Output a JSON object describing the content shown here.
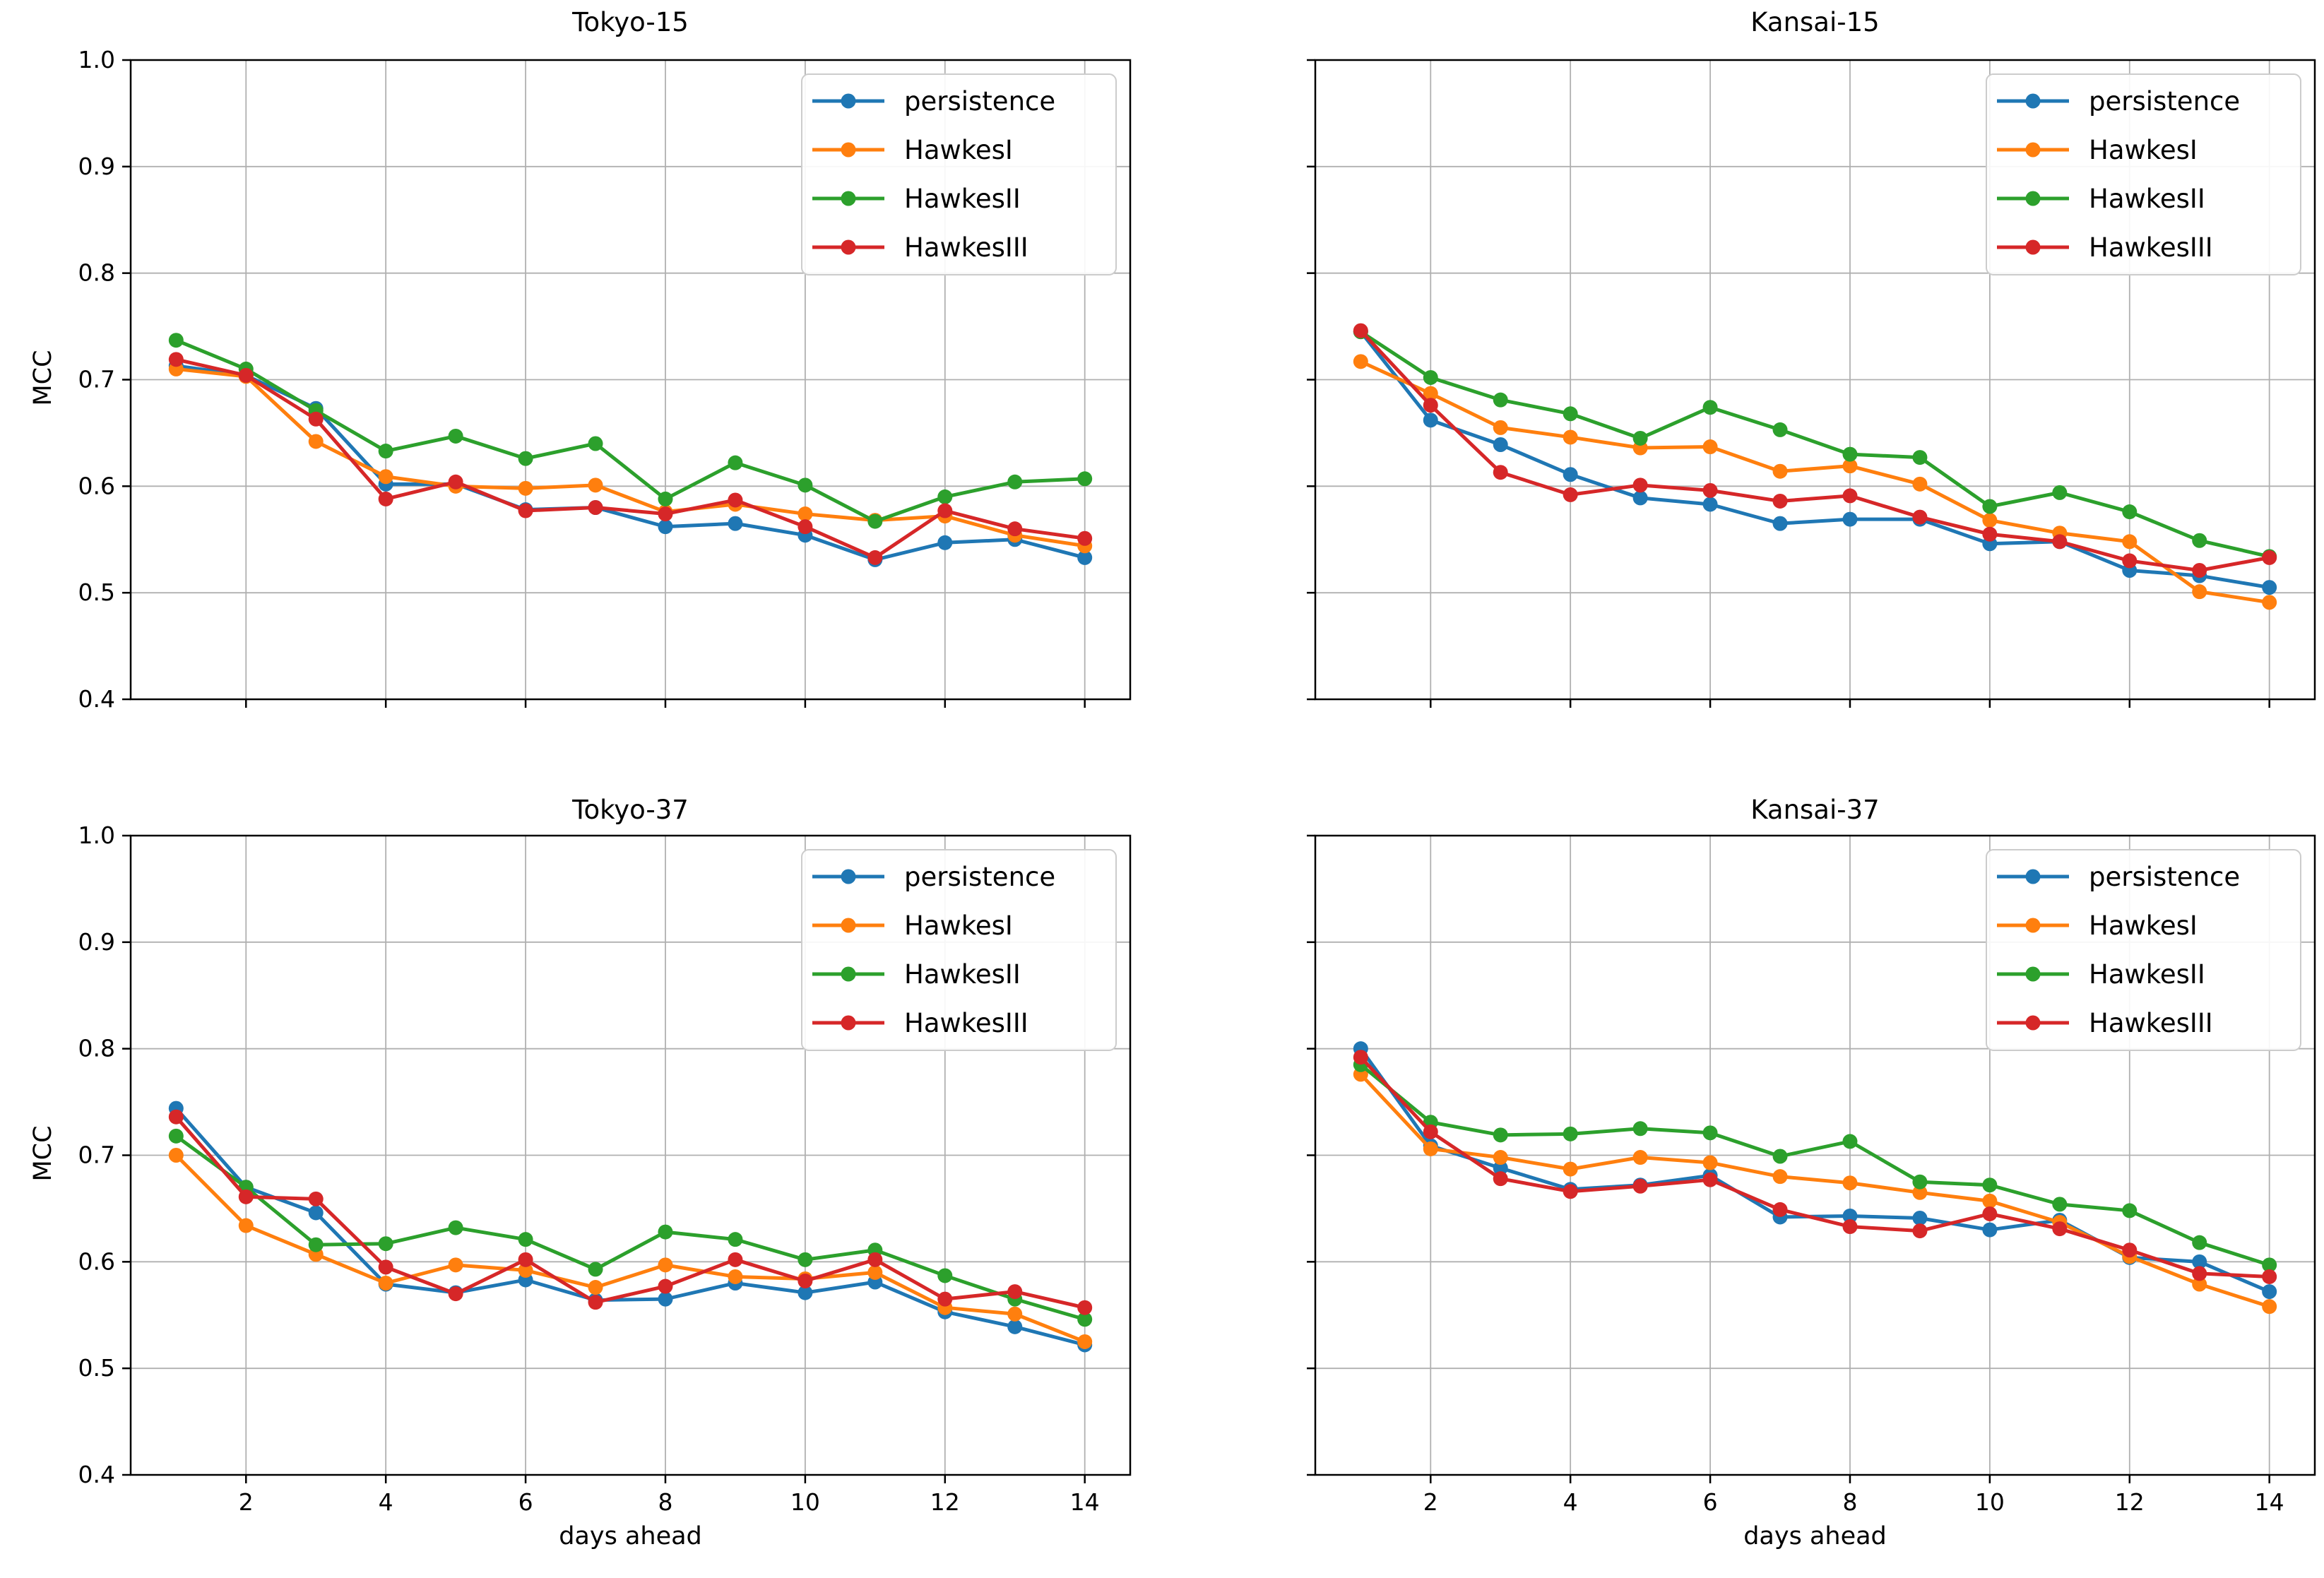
{
  "figure": {
    "background": "#ffffff",
    "grid_color": "#b0b0b0",
    "spine_color": "#000000",
    "legend_border_color": "#cccccc",
    "colors": {
      "persistence": "#1f77b4",
      "HawkesI": "#ff7f0e",
      "HawkesII": "#2ca02c",
      "HawkesIII": "#d62728"
    },
    "legend_labels": [
      "persistence",
      "HawkesI",
      "HawkesII",
      "HawkesIII"
    ]
  },
  "chart_data": [
    {
      "type": "line",
      "title": "Tokyo-15",
      "ylabel": "MCC",
      "x": [
        1,
        2,
        3,
        4,
        5,
        6,
        7,
        8,
        9,
        10,
        11,
        12,
        13,
        14
      ],
      "xlim": [
        0.35,
        14.65
      ],
      "ylim": [
        0.4,
        1.0
      ],
      "x_ticks": [
        2,
        4,
        6,
        8,
        10,
        12,
        14
      ],
      "y_ticks": [
        "1.0",
        "0.9",
        "0.8",
        "0.7",
        "0.6",
        "0.5",
        "0.4"
      ],
      "grid": true,
      "legend_position": "upper right",
      "series": [
        {
          "name": "persistence",
          "color": "#1f77b4",
          "marker": "o",
          "values": [
            0.713,
            0.704,
            0.673,
            0.602,
            0.602,
            0.578,
            0.58,
            0.562,
            0.565,
            0.554,
            0.531,
            0.547,
            0.55,
            0.533
          ]
        },
        {
          "name": "HawkesI",
          "color": "#ff7f0e",
          "marker": "o",
          "values": [
            0.71,
            0.703,
            0.642,
            0.609,
            0.6,
            0.598,
            0.601,
            0.576,
            0.583,
            0.574,
            0.568,
            0.572,
            0.554,
            0.544
          ]
        },
        {
          "name": "HawkesII",
          "color": "#2ca02c",
          "marker": "o",
          "values": [
            0.737,
            0.71,
            0.671,
            0.633,
            0.647,
            0.626,
            0.64,
            0.588,
            0.622,
            0.601,
            0.567,
            0.59,
            0.604,
            0.607
          ]
        },
        {
          "name": "HawkesIII",
          "color": "#d62728",
          "marker": "o",
          "values": [
            0.719,
            0.704,
            0.663,
            0.588,
            0.604,
            0.577,
            0.58,
            0.574,
            0.587,
            0.562,
            0.533,
            0.577,
            0.56,
            0.551
          ]
        }
      ]
    },
    {
      "type": "line",
      "title": "Kansai-15",
      "x": [
        1,
        2,
        3,
        4,
        5,
        6,
        7,
        8,
        9,
        10,
        11,
        12,
        13,
        14
      ],
      "xlim": [
        0.35,
        14.65
      ],
      "ylim": [
        0.4,
        1.0
      ],
      "x_ticks": [
        2,
        4,
        6,
        8,
        10,
        12,
        14
      ],
      "y_ticks": [
        "1.0",
        "0.9",
        "0.8",
        "0.7",
        "0.6",
        "0.5",
        "0.4"
      ],
      "grid": true,
      "legend_position": "upper right",
      "series": [
        {
          "name": "persistence",
          "color": "#1f77b4",
          "marker": "o",
          "values": [
            0.745,
            0.662,
            0.639,
            0.611,
            0.589,
            0.583,
            0.565,
            0.569,
            0.569,
            0.546,
            0.548,
            0.521,
            0.516,
            0.505
          ]
        },
        {
          "name": "HawkesI",
          "color": "#ff7f0e",
          "marker": "o",
          "values": [
            0.717,
            0.687,
            0.655,
            0.646,
            0.636,
            0.637,
            0.614,
            0.619,
            0.602,
            0.568,
            0.556,
            0.548,
            0.501,
            0.491
          ]
        },
        {
          "name": "HawkesII",
          "color": "#2ca02c",
          "marker": "o",
          "values": [
            0.745,
            0.702,
            0.681,
            0.668,
            0.645,
            0.674,
            0.653,
            0.63,
            0.627,
            0.581,
            0.594,
            0.576,
            0.549,
            0.534
          ]
        },
        {
          "name": "HawkesIII",
          "color": "#d62728",
          "marker": "o",
          "values": [
            0.746,
            0.676,
            0.613,
            0.592,
            0.601,
            0.596,
            0.586,
            0.591,
            0.571,
            0.555,
            0.548,
            0.53,
            0.521,
            0.533
          ]
        }
      ]
    },
    {
      "type": "line",
      "title": "Tokyo-37",
      "ylabel": "MCC",
      "xlabel": "days ahead",
      "x": [
        1,
        2,
        3,
        4,
        5,
        6,
        7,
        8,
        9,
        10,
        11,
        12,
        13,
        14
      ],
      "xlim": [
        0.35,
        14.65
      ],
      "ylim": [
        0.4,
        1.0
      ],
      "x_ticks": [
        2,
        4,
        6,
        8,
        10,
        12,
        14
      ],
      "y_ticks": [
        "1.0",
        "0.9",
        "0.8",
        "0.7",
        "0.6",
        "0.5",
        "0.4"
      ],
      "grid": true,
      "legend_position": "upper right",
      "series": [
        {
          "name": "persistence",
          "color": "#1f77b4",
          "marker": "o",
          "values": [
            0.744,
            0.67,
            0.646,
            0.579,
            0.571,
            0.583,
            0.564,
            0.565,
            0.58,
            0.571,
            0.581,
            0.553,
            0.539,
            0.522
          ]
        },
        {
          "name": "HawkesI",
          "color": "#ff7f0e",
          "marker": "o",
          "values": [
            0.7,
            0.634,
            0.607,
            0.58,
            0.597,
            0.592,
            0.576,
            0.597,
            0.586,
            0.584,
            0.59,
            0.557,
            0.551,
            0.525
          ]
        },
        {
          "name": "HawkesII",
          "color": "#2ca02c",
          "marker": "o",
          "values": [
            0.718,
            0.67,
            0.616,
            0.617,
            0.632,
            0.621,
            0.593,
            0.628,
            0.621,
            0.602,
            0.611,
            0.587,
            0.565,
            0.546
          ]
        },
        {
          "name": "HawkesIII",
          "color": "#d62728",
          "marker": "o",
          "values": [
            0.736,
            0.661,
            0.659,
            0.595,
            0.57,
            0.602,
            0.562,
            0.577,
            0.602,
            0.582,
            0.602,
            0.565,
            0.572,
            0.557
          ]
        }
      ]
    },
    {
      "type": "line",
      "title": "Kansai-37",
      "xlabel": "days ahead",
      "x": [
        1,
        2,
        3,
        4,
        5,
        6,
        7,
        8,
        9,
        10,
        11,
        12,
        13,
        14
      ],
      "xlim": [
        0.35,
        14.65
      ],
      "ylim": [
        0.4,
        1.0
      ],
      "x_ticks": [
        2,
        4,
        6,
        8,
        10,
        12,
        14
      ],
      "y_ticks": [
        "1.0",
        "0.9",
        "0.8",
        "0.7",
        "0.6",
        "0.5",
        "0.4"
      ],
      "grid": true,
      "legend_position": "upper right",
      "series": [
        {
          "name": "persistence",
          "color": "#1f77b4",
          "marker": "o",
          "values": [
            0.8,
            0.709,
            0.688,
            0.668,
            0.672,
            0.681,
            0.642,
            0.643,
            0.641,
            0.63,
            0.639,
            0.604,
            0.6,
            0.572
          ]
        },
        {
          "name": "HawkesI",
          "color": "#ff7f0e",
          "marker": "o",
          "values": [
            0.776,
            0.706,
            0.698,
            0.687,
            0.698,
            0.693,
            0.68,
            0.674,
            0.665,
            0.657,
            0.637,
            0.605,
            0.579,
            0.558
          ]
        },
        {
          "name": "HawkesII",
          "color": "#2ca02c",
          "marker": "o",
          "values": [
            0.785,
            0.731,
            0.719,
            0.72,
            0.725,
            0.721,
            0.699,
            0.713,
            0.675,
            0.672,
            0.654,
            0.648,
            0.618,
            0.597
          ]
        },
        {
          "name": "HawkesIII",
          "color": "#d62728",
          "marker": "o",
          "values": [
            0.792,
            0.722,
            0.678,
            0.666,
            0.671,
            0.677,
            0.649,
            0.633,
            0.629,
            0.645,
            0.631,
            0.611,
            0.589,
            0.586
          ]
        }
      ]
    }
  ]
}
